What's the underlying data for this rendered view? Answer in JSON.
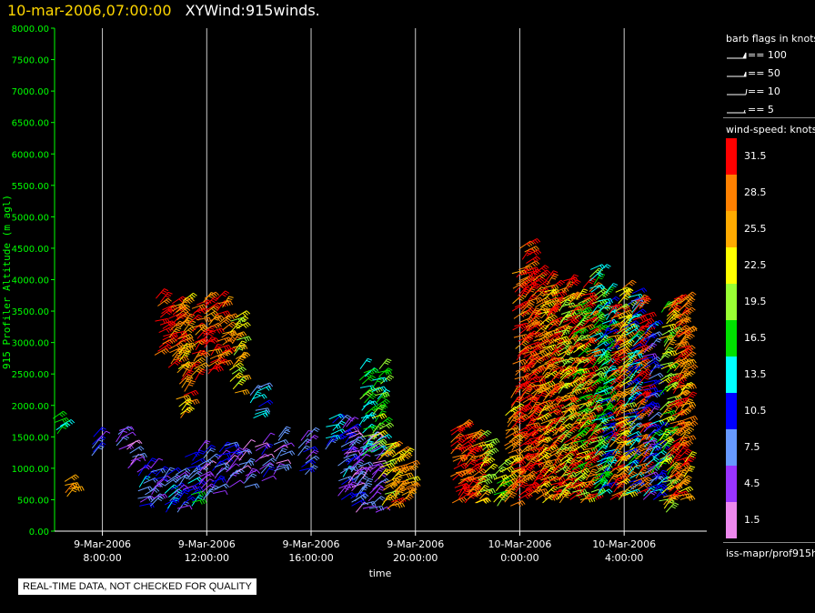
{
  "header": {
    "timestamp": "10-mar-2006,07:00:00",
    "title": "XYWind:915winds."
  },
  "legend": {
    "barb_title": "barb flags in knots",
    "barb_items": [
      {
        "label": "== 100"
      },
      {
        "label": "== 50"
      },
      {
        "label": "== 10"
      },
      {
        "label": "== 5"
      }
    ],
    "speed_title": "wind-speed: knots",
    "speed_bins": [
      {
        "label": "31.5",
        "color": "#ff0000"
      },
      {
        "label": "28.5",
        "color": "#ff8000"
      },
      {
        "label": "25.5",
        "color": "#ffaa00"
      },
      {
        "label": "22.5",
        "color": "#ffff00"
      },
      {
        "label": "19.5",
        "color": "#99ff33"
      },
      {
        "label": "16.5",
        "color": "#00e000"
      },
      {
        "label": "13.5",
        "color": "#00ffff"
      },
      {
        "label": "10.5",
        "color": "#0000ff"
      },
      {
        "label": "7.5",
        "color": "#6699ff"
      },
      {
        "label": "4.5",
        "color": "#9933ff"
      },
      {
        "label": "1.5",
        "color": "#ee88ee"
      }
    ],
    "source": "iss-mapr/prof915h"
  },
  "quality_note": "REAL-TIME DATA, NOT CHECKED FOR QUALITY",
  "colors": {
    "axis": "#00ff00",
    "xaxis": "#ffffff",
    "grid": "#cccccc",
    "header_time": "#ffd700"
  },
  "chart_data": {
    "type": "scatter",
    "ylabel": "915 Profiler Altitude (m agl)",
    "xlabel": "time",
    "ylim": [
      0,
      8000
    ],
    "y_ticks": [
      "0.00",
      "500.00",
      "1000.00",
      "1500.00",
      "2000.00",
      "2500.00",
      "3000.00",
      "3500.00",
      "4000.00",
      "4500.00",
      "5000.00",
      "5500.00",
      "6000.00",
      "6500.00",
      "7000.00",
      "7500.00",
      "8000.00"
    ],
    "xlim": [
      "2006-03-09 06:10",
      "2006-03-10 07:10"
    ],
    "x_ticks": [
      {
        "date": "9-Mar-2006",
        "time": "8:00:00",
        "t": "2006-03-09 08:00"
      },
      {
        "date": "9-Mar-2006",
        "time": "12:00:00",
        "t": "2006-03-09 12:00"
      },
      {
        "date": "9-Mar-2006",
        "time": "16:00:00",
        "t": "2006-03-09 16:00"
      },
      {
        "date": "9-Mar-2006",
        "time": "20:00:00",
        "t": "2006-03-09 20:00"
      },
      {
        "date": "10-Mar-2006",
        "time": "0:00:00",
        "t": "2006-03-10 00:00"
      },
      {
        "date": "10-Mar-2006",
        "time": "4:00:00",
        "t": "2006-03-10 04:00"
      }
    ],
    "grid": "vertical",
    "columns": [
      {
        "t": "2006-03-09 06:15",
        "zmin": 1550,
        "zmax": 1800,
        "speed": 16
      },
      {
        "t": "2006-03-09 06:35",
        "zmin": 550,
        "zmax": 800,
        "speed": 28
      },
      {
        "t": "2006-03-09 07:40",
        "zmin": 1200,
        "zmax": 1500,
        "speed": 7
      },
      {
        "t": "2006-03-09 08:40",
        "zmin": 1300,
        "zmax": 1650,
        "speed": 5
      },
      {
        "t": "2006-03-09 09:00",
        "zmin": 1000,
        "zmax": 1400,
        "speed": 5
      },
      {
        "t": "2006-03-09 09:30",
        "zmin": 400,
        "zmax": 1000,
        "speed": 9
      },
      {
        "t": "2006-03-09 10:00",
        "zmin": 400,
        "zmax": 1050,
        "speed": 8
      },
      {
        "t": "2006-03-09 10:10",
        "zmin": 2800,
        "zmax": 3700,
        "speed": 31
      },
      {
        "t": "2006-03-09 10:30",
        "zmin": 300,
        "zmax": 900,
        "speed": 10
      },
      {
        "t": "2006-03-09 10:40",
        "zmin": 2600,
        "zmax": 3650,
        "speed": 30
      },
      {
        "t": "2006-03-09 10:55",
        "zmin": 300,
        "zmax": 950,
        "speed": 7
      },
      {
        "t": "2006-03-09 11:00",
        "zmin": 1800,
        "zmax": 3700,
        "speed": 27
      },
      {
        "t": "2006-03-09 11:20",
        "zmin": 400,
        "zmax": 1200,
        "speed": 12
      },
      {
        "t": "2006-03-09 11:30",
        "zmin": 2400,
        "zmax": 3600,
        "speed": 29
      },
      {
        "t": "2006-03-09 11:50",
        "zmin": 500,
        "zmax": 1300,
        "speed": 6
      },
      {
        "t": "2006-03-09 12:00",
        "zmin": 2500,
        "zmax": 3700,
        "speed": 30
      },
      {
        "t": "2006-03-09 12:20",
        "zmin": 600,
        "zmax": 1300,
        "speed": 8
      },
      {
        "t": "2006-03-09 12:30",
        "zmin": 2600,
        "zmax": 3700,
        "speed": 29
      },
      {
        "t": "2006-03-09 12:50",
        "zmin": 700,
        "zmax": 1400,
        "speed": 6
      },
      {
        "t": "2006-03-09 13:00",
        "zmin": 2200,
        "zmax": 3400,
        "speed": 24
      },
      {
        "t": "2006-03-09 13:20",
        "zmin": 700,
        "zmax": 1350,
        "speed": 5
      },
      {
        "t": "2006-03-09 13:50",
        "zmin": 1800,
        "zmax": 2300,
        "speed": 10
      },
      {
        "t": "2006-03-09 14:00",
        "zmin": 800,
        "zmax": 1400,
        "speed": 6
      },
      {
        "t": "2006-03-09 14:40",
        "zmin": 900,
        "zmax": 1500,
        "speed": 5
      },
      {
        "t": "2006-03-09 15:40",
        "zmin": 900,
        "zmax": 1500,
        "speed": 8
      },
      {
        "t": "2006-03-09 16:40",
        "zmin": 1300,
        "zmax": 1800,
        "speed": 12
      },
      {
        "t": "2006-03-09 17:10",
        "zmin": 500,
        "zmax": 1700,
        "speed": 9
      },
      {
        "t": "2006-03-09 17:30",
        "zmin": 400,
        "zmax": 1700,
        "speed": 6
      },
      {
        "t": "2006-03-09 17:50",
        "zmin": 300,
        "zmax": 1400,
        "speed": 5
      },
      {
        "t": "2006-03-09 18:00",
        "zmin": 1200,
        "zmax": 2600,
        "speed": 16
      },
      {
        "t": "2006-03-09 18:20",
        "zmin": 300,
        "zmax": 1500,
        "speed": 5
      },
      {
        "t": "2006-03-09 18:30",
        "zmin": 1200,
        "zmax": 2600,
        "speed": 18
      },
      {
        "t": "2006-03-09 18:45",
        "zmin": 350,
        "zmax": 1400,
        "speed": 24
      },
      {
        "t": "2006-03-09 19:10",
        "zmin": 400,
        "zmax": 1300,
        "speed": 27
      },
      {
        "t": "2006-03-09 19:30",
        "zmin": 450,
        "zmax": 1200,
        "speed": 26
      },
      {
        "t": "2006-03-09 21:30",
        "zmin": 450,
        "zmax": 1700,
        "speed": 31
      },
      {
        "t": "2006-03-09 21:50",
        "zmin": 450,
        "zmax": 1650,
        "speed": 31
      },
      {
        "t": "2006-03-09 22:10",
        "zmin": 450,
        "zmax": 1500,
        "speed": 30
      },
      {
        "t": "2006-03-09 22:30",
        "zmin": 450,
        "zmax": 1500,
        "speed": 23
      },
      {
        "t": "2006-03-09 23:10",
        "zmin": 400,
        "zmax": 1000,
        "speed": 20
      },
      {
        "t": "2006-03-09 23:30",
        "zmin": 400,
        "zmax": 2000,
        "speed": 26
      },
      {
        "t": "2006-03-09 23:50",
        "zmin": 500,
        "zmax": 4200,
        "speed": 30
      },
      {
        "t": "2006-03-10 00:10",
        "zmin": 600,
        "zmax": 4600,
        "speed": 31
      },
      {
        "t": "2006-03-10 00:30",
        "zmin": 500,
        "zmax": 4100,
        "speed": 30
      },
      {
        "t": "2006-03-10 00:50",
        "zmin": 450,
        "zmax": 3900,
        "speed": 25
      },
      {
        "t": "2006-03-10 01:10",
        "zmin": 500,
        "zmax": 4000,
        "speed": 31
      },
      {
        "t": "2006-03-10 01:30",
        "zmin": 450,
        "zmax": 3700,
        "speed": 22
      },
      {
        "t": "2006-03-10 01:50",
        "zmin": 500,
        "zmax": 4000,
        "speed": 30
      },
      {
        "t": "2006-03-10 02:10",
        "zmin": 500,
        "zmax": 3700,
        "speed": 19
      },
      {
        "t": "2006-03-10 02:30",
        "zmin": 450,
        "zmax": 3900,
        "speed": 31
      },
      {
        "t": "2006-03-10 02:50",
        "zmin": 500,
        "zmax": 4200,
        "speed": 17
      },
      {
        "t": "2006-03-10 03:10",
        "zmin": 600,
        "zmax": 3800,
        "speed": 14
      },
      {
        "t": "2006-03-10 03:30",
        "zmin": 500,
        "zmax": 3600,
        "speed": 30
      },
      {
        "t": "2006-03-10 03:50",
        "zmin": 500,
        "zmax": 3900,
        "speed": 24
      },
      {
        "t": "2006-03-10 04:10",
        "zmin": 600,
        "zmax": 3800,
        "speed": 12
      },
      {
        "t": "2006-03-10 04:30",
        "zmin": 600,
        "zmax": 3700,
        "speed": 31
      },
      {
        "t": "2006-03-10 04:50",
        "zmin": 500,
        "zmax": 3300,
        "speed": 9
      },
      {
        "t": "2006-03-10 05:10",
        "zmin": 500,
        "zmax": 1600,
        "speed": 13
      },
      {
        "t": "2006-03-10 05:30",
        "zmin": 300,
        "zmax": 3600,
        "speed": 21
      },
      {
        "t": "2006-03-10 05:50",
        "zmin": 450,
        "zmax": 3700,
        "speed": 30
      },
      {
        "t": "2006-03-10 06:10",
        "zmin": 500,
        "zmax": 3700,
        "speed": 27
      }
    ]
  }
}
